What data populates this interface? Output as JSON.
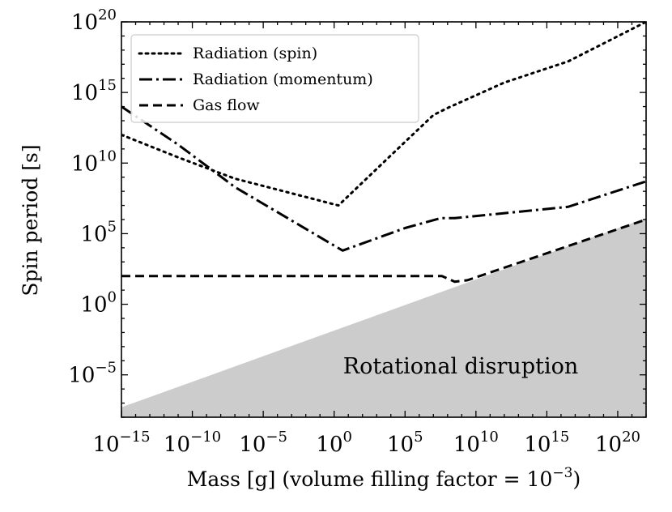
{
  "chart_data": {
    "type": "line",
    "xlabel": "Mass [g] (volume filling factor = 10",
    "xlabel_exp": "−3",
    "xlabel_suffix": ")",
    "ylabel": "Spin period [s]",
    "xscale": "log",
    "yscale": "log",
    "xlim_exp": [
      -15,
      22
    ],
    "ylim_exp": [
      -8,
      20
    ],
    "x_ticks": [
      {
        "base": "10",
        "exp": "−15",
        "value": -15
      },
      {
        "base": "10",
        "exp": "−10",
        "value": -10
      },
      {
        "base": "10",
        "exp": "−5",
        "value": -5
      },
      {
        "base": "10",
        "exp": "0",
        "value": 0
      },
      {
        "base": "10",
        "exp": "5",
        "value": 5
      },
      {
        "base": "10",
        "exp": "10",
        "value": 10
      },
      {
        "base": "10",
        "exp": "15",
        "value": 15
      },
      {
        "base": "10",
        "exp": "20",
        "value": 20
      }
    ],
    "y_ticks": [
      {
        "base": "10",
        "exp": "−5",
        "value": -5
      },
      {
        "base": "10",
        "exp": "0",
        "value": 0
      },
      {
        "base": "10",
        "exp": "5",
        "value": 5
      },
      {
        "base": "10",
        "exp": "10",
        "value": 10
      },
      {
        "base": "10",
        "exp": "15",
        "value": 15
      },
      {
        "base": "10",
        "exp": "20",
        "value": 20
      }
    ],
    "legend_position": "top-left",
    "series": [
      {
        "name": "Radiation (spin)",
        "style": "dotted",
        "log_x": [
          -15,
          -11,
          -7,
          0.3,
          5,
          7,
          8,
          12,
          16.5,
          22
        ],
        "log_y": [
          12,
          10.4,
          8.9,
          7.0,
          11.5,
          13.4,
          13.9,
          15.7,
          17.2,
          20.0
        ]
      },
      {
        "name": "Radiation (momentum)",
        "style": "dashdot",
        "log_x": [
          -15,
          -11,
          -7,
          0.6,
          5,
          7.5,
          8.5,
          16.5,
          22
        ],
        "log_y": [
          14.0,
          11.3,
          8.3,
          3.8,
          5.4,
          6.1,
          6.1,
          6.9,
          8.7
        ]
      },
      {
        "name": "Gas flow",
        "style": "dashed",
        "log_x": [
          -15,
          4,
          7.6,
          8.5,
          9.4,
          22
        ],
        "log_y": [
          2.0,
          2.0,
          2.0,
          1.6,
          1.7,
          6.0
        ]
      }
    ],
    "shaded_region": {
      "label": "Rotational disruption",
      "boundary_log_x": [
        -15,
        22
      ],
      "boundary_log_y": [
        -7.3,
        6.1
      ],
      "color": "#cccccc"
    }
  }
}
